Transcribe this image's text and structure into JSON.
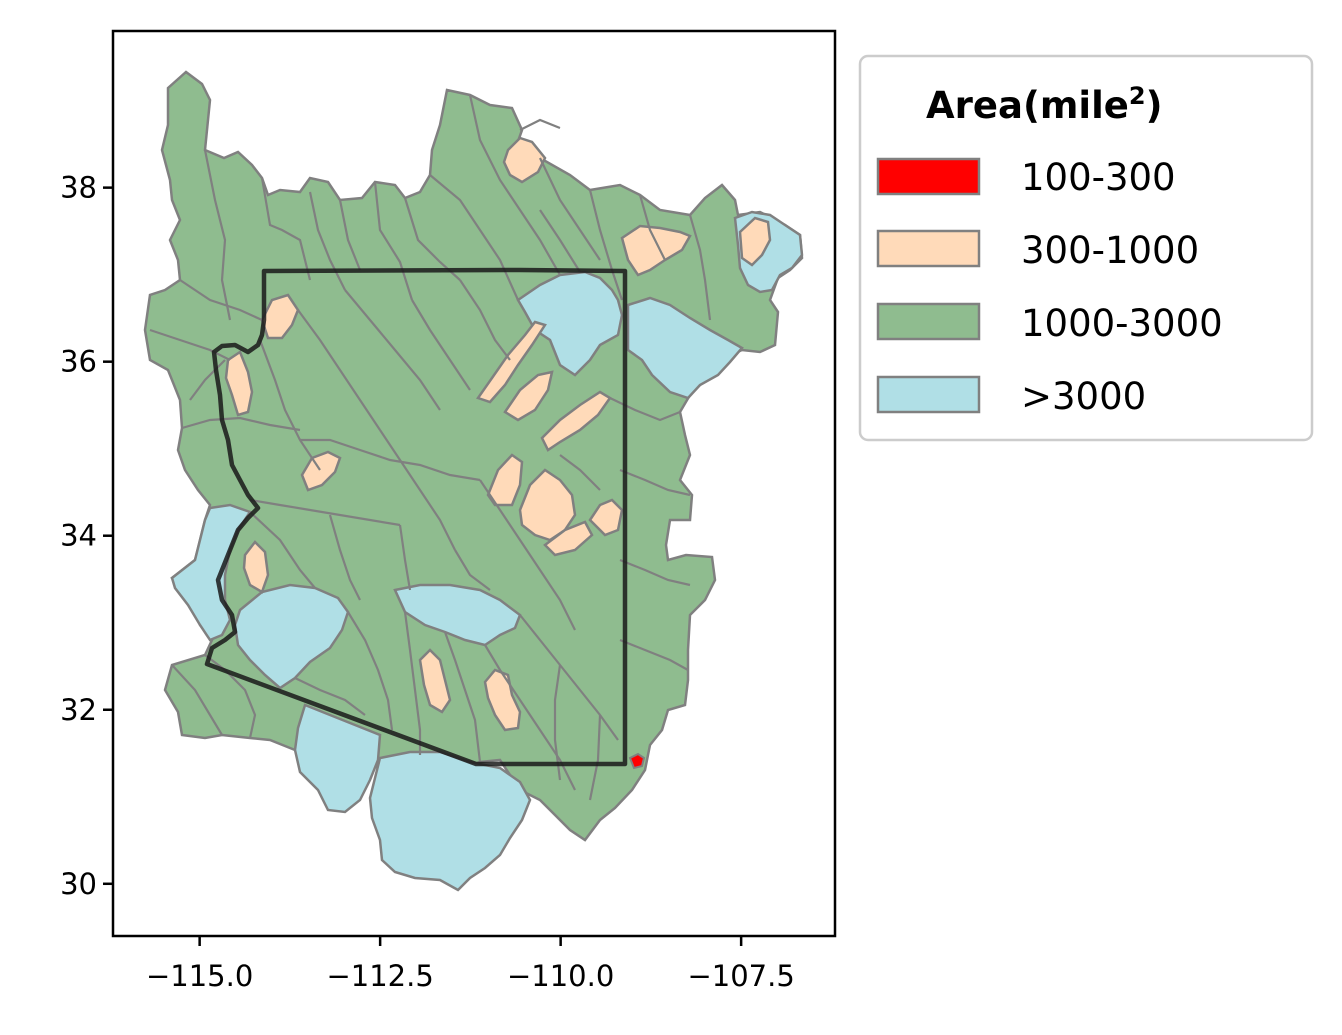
{
  "map": {
    "x_ticks": [
      "−115.0",
      "−112.5",
      "−110.0",
      "−107.5"
    ],
    "y_ticks": [
      "30",
      "32",
      "34",
      "36",
      "38"
    ],
    "xlim": [
      -116.2,
      -106.2
    ],
    "ylim": [
      29.4,
      39.8
    ]
  },
  "legend": {
    "title_main": "Area(mile",
    "title_sup": "2",
    "title_end": ")",
    "placement": "upper-right-outside",
    "items": [
      {
        "label": "100-300",
        "color": "#ff0000"
      },
      {
        "label": "300-1000",
        "color": "#ffdab9"
      },
      {
        "label": "1000-3000",
        "color": "#8fbc8f"
      },
      {
        "label": ">3000",
        "color": "#b0dfe6"
      }
    ]
  },
  "colors": {
    "region_outline": "#808080",
    "state_boundary": "#1a1a1a"
  }
}
